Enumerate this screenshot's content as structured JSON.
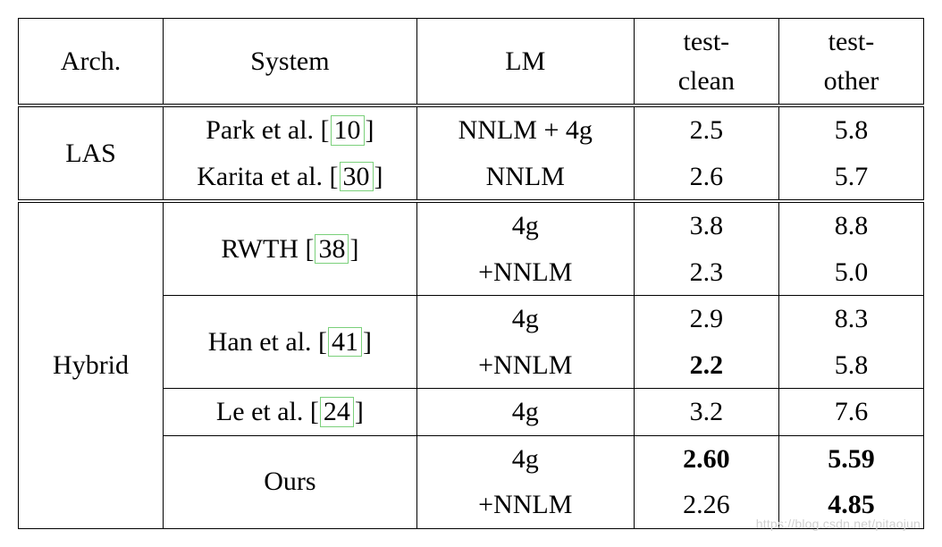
{
  "table": {
    "font_family": "Times New Roman",
    "font_size_pt": 30,
    "col_widths_pct": [
      16,
      28,
      24,
      16,
      16
    ],
    "border_color": "#000000",
    "citation_box_border": "#7bd07b",
    "background_color": "#ffffff",
    "text_color": "#000000",
    "header": {
      "arch": "Arch.",
      "system": "System",
      "lm": "LM",
      "test_clean_top": "test-",
      "test_clean_bot": "clean",
      "test_other_top": "test-",
      "test_other_bot": "other"
    },
    "groups": [
      {
        "arch": "LAS",
        "rows": [
          {
            "system_prefix": "Park et al. [",
            "system_cite": "10",
            "system_suffix": "]",
            "lm": "NNLM + 4g",
            "test_clean": "2.5",
            "tc_bold": false,
            "test_other": "5.8",
            "to_bold": false
          },
          {
            "system_prefix": "Karita et al. [",
            "system_cite": "30",
            "system_suffix": "]",
            "lm": "NNLM",
            "test_clean": "2.6",
            "tc_bold": false,
            "test_other": "5.7",
            "to_bold": false
          }
        ]
      },
      {
        "arch": "Hybrid",
        "rows": [
          {
            "system_prefix": "RWTH [",
            "system_cite": "38",
            "system_suffix": "]",
            "variants": [
              {
                "lm": "4g",
                "test_clean": "3.8",
                "tc_bold": false,
                "test_other": "8.8",
                "to_bold": false
              },
              {
                "lm": "+NNLM",
                "test_clean": "2.3",
                "tc_bold": false,
                "test_other": "5.0",
                "to_bold": false
              }
            ]
          },
          {
            "system_prefix": "Han et al. [",
            "system_cite": "41",
            "system_suffix": "]",
            "variants": [
              {
                "lm": "4g",
                "test_clean": "2.9",
                "tc_bold": false,
                "test_other": "8.3",
                "to_bold": false
              },
              {
                "lm": "+NNLM",
                "test_clean": "2.2",
                "tc_bold": true,
                "test_other": "5.8",
                "to_bold": false
              }
            ]
          },
          {
            "system_prefix": "Le et al. [",
            "system_cite": "24",
            "system_suffix": "]",
            "lm": "4g",
            "test_clean": "3.2",
            "tc_bold": false,
            "test_other": "7.6",
            "to_bold": false
          },
          {
            "system_plain": "Ours",
            "variants": [
              {
                "lm": "4g",
                "test_clean": "2.60",
                "tc_bold": true,
                "test_other": "5.59",
                "to_bold": true
              },
              {
                "lm": "+NNLM",
                "test_clean": "2.26",
                "tc_bold": false,
                "test_other": "4.85",
                "to_bold": true
              }
            ]
          }
        ]
      }
    ]
  },
  "watermark": "https://blog.csdn.net/pitaojun"
}
